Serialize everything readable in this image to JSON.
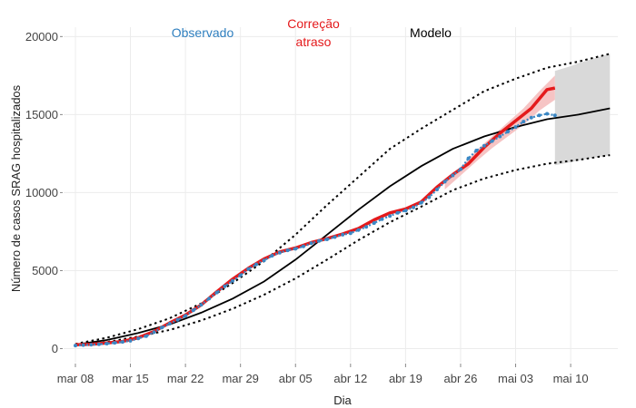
{
  "chart_data": {
    "type": "line",
    "xlabel": "Dia",
    "ylabel": "Número de casos SRAG hospitalizados",
    "ylim": [
      -900,
      20600
    ],
    "x_range_days": [
      -1.5,
      69
    ],
    "x_ticks": [
      {
        "day": 0,
        "label": "mar 08"
      },
      {
        "day": 7,
        "label": "mar 15"
      },
      {
        "day": 14,
        "label": "mar 22"
      },
      {
        "day": 21,
        "label": "mar 29"
      },
      {
        "day": 28,
        "label": "abr 05"
      },
      {
        "day": 35,
        "label": "abr 12"
      },
      {
        "day": 42,
        "label": "abr 19"
      },
      {
        "day": 49,
        "label": "abr 26"
      },
      {
        "day": 56,
        "label": "mai 03"
      },
      {
        "day": 63,
        "label": "mai 10"
      }
    ],
    "y_ticks": [
      {
        "value": 0,
        "label": "0"
      },
      {
        "value": 5000,
        "label": "5000"
      },
      {
        "value": 10000,
        "label": "10000"
      },
      {
        "value": 15000,
        "label": "15000"
      },
      {
        "value": 20000,
        "label": "20000"
      }
    ],
    "grid": true,
    "legend": [
      {
        "label": "Observado",
        "color": "#2f7fbf"
      },
      {
        "label": "Correção\natraso",
        "color": "#e41a1c"
      },
      {
        "label": "Modelo",
        "color": "#000000"
      }
    ],
    "colors": {
      "observed": "#3a87c4",
      "corrected": "#e41a1c",
      "corrected_band": "#f6c4c4",
      "model": "#000000",
      "forecast_band": "#d9d9d9"
    },
    "series": [
      {
        "name": "Observado",
        "x": [
          0,
          1,
          2,
          3,
          4,
          5,
          6,
          7,
          8,
          9,
          10,
          11,
          12,
          13,
          14,
          15,
          16,
          17,
          18,
          19,
          20,
          21,
          22,
          23,
          24,
          25,
          26,
          27,
          28,
          29,
          30,
          31,
          32,
          33,
          34,
          35,
          36,
          37,
          38,
          39,
          40,
          41,
          42,
          43,
          44,
          45,
          46,
          47,
          48,
          49,
          50,
          51,
          52,
          53,
          54,
          55,
          56,
          57,
          58,
          59,
          60,
          61
        ],
        "y": [
          200,
          230,
          250,
          280,
          320,
          370,
          430,
          500,
          650,
          800,
          1050,
          1350,
          1600,
          1850,
          2100,
          2450,
          2800,
          3200,
          3600,
          4000,
          4350,
          4700,
          5100,
          5400,
          5650,
          5950,
          6150,
          6300,
          6400,
          6550,
          6750,
          6900,
          7000,
          7150,
          7300,
          7400,
          7600,
          7800,
          8050,
          8300,
          8500,
          8700,
          8850,
          9050,
          9350,
          9700,
          10200,
          10700,
          11100,
          11500,
          12200,
          12700,
          13000,
          13300,
          13600,
          13900,
          14200,
          14550,
          14800,
          14950,
          15050,
          14950
        ]
      },
      {
        "name": "Correção atraso",
        "x": [
          0,
          2,
          4,
          6,
          8,
          10,
          12,
          14,
          16,
          18,
          20,
          22,
          24,
          26,
          28,
          30,
          32,
          34,
          36,
          38,
          40,
          42,
          44,
          46,
          48,
          50,
          52,
          54,
          56,
          58,
          60,
          61
        ],
        "y": [
          250,
          280,
          360,
          460,
          700,
          1100,
          1650,
          2150,
          2800,
          3650,
          4450,
          5150,
          5750,
          6200,
          6450,
          6800,
          7050,
          7350,
          7700,
          8250,
          8700,
          8950,
          9400,
          10350,
          11150,
          11850,
          12900,
          13800,
          14600,
          15400,
          16600,
          16700
        ],
        "band_x": [
          47,
          49,
          51,
          53,
          55,
          57,
          59,
          61
        ],
        "band_upper": [
          10600,
          11600,
          12700,
          13600,
          14500,
          15400,
          16500,
          17500
        ],
        "band_lower": [
          10200,
          11100,
          12000,
          12850,
          13600,
          14350,
          15250,
          15950
        ]
      },
      {
        "name": "Modelo",
        "x": [
          0,
          4,
          8,
          12,
          16,
          20,
          24,
          28,
          32,
          36,
          40,
          44,
          48,
          52,
          56,
          60,
          64,
          68
        ],
        "y": [
          250,
          550,
          1000,
          1550,
          2300,
          3200,
          4300,
          5700,
          7300,
          8900,
          10400,
          11700,
          12800,
          13600,
          14200,
          14700,
          15000,
          15400
        ],
        "upper": [
          300,
          700,
          1250,
          1950,
          2900,
          4200,
          5600,
          7300,
          9200,
          11000,
          12800,
          14100,
          15300,
          16500,
          17300,
          18000,
          18400,
          18900
        ],
        "lower": [
          200,
          420,
          780,
          1200,
          1800,
          2550,
          3450,
          4500,
          5700,
          6950,
          8100,
          9100,
          10150,
          10900,
          11450,
          11850,
          12100,
          12400
        ]
      }
    ],
    "forecast_band": {
      "x": [
        61,
        62,
        63,
        64,
        65,
        66,
        67,
        68
      ],
      "upper": [
        17800,
        17950,
        18100,
        18300,
        18450,
        18600,
        18750,
        18900
      ],
      "lower": [
        11750,
        11850,
        11950,
        12050,
        12150,
        12250,
        12300,
        12400
      ]
    }
  }
}
